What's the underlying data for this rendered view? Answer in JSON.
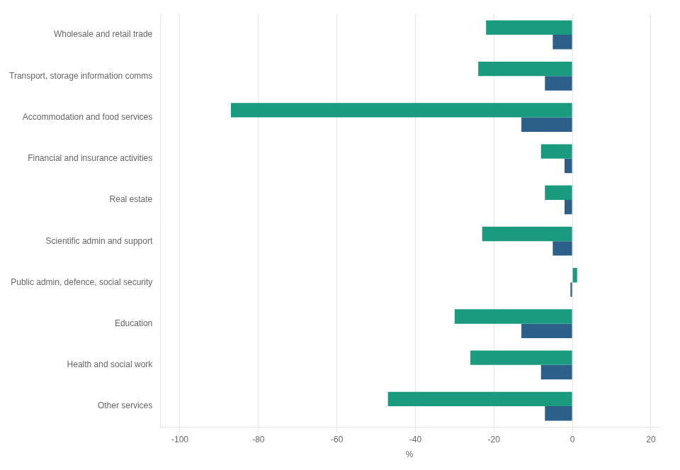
{
  "chart_data": {
    "type": "bar",
    "orientation": "horizontal",
    "categories": [
      "Other services",
      "Health and social work",
      "Education",
      "Public admin, defence, social security",
      "Scientific admin and support",
      "Real estate",
      "Financial and insurance activities",
      "Accommodation and food services",
      "Transport, storage information comms",
      "Wholesale and retail trade"
    ],
    "series": [
      {
        "color": "#1a9b80",
        "values": [
          -47,
          -26,
          -30,
          1.2,
          -23,
          -7,
          -8,
          -87,
          -24,
          -22
        ]
      },
      {
        "color": "#2c5f8a",
        "values": [
          -7,
          -8,
          -13,
          -0.5,
          -5,
          -2,
          -2,
          -13,
          -7,
          -5
        ]
      }
    ],
    "xlabel": "%",
    "xlim": [
      -105,
      22
    ],
    "xticks": [
      -100,
      -80,
      -60,
      -40,
      -20,
      0,
      20
    ],
    "grid": true
  }
}
